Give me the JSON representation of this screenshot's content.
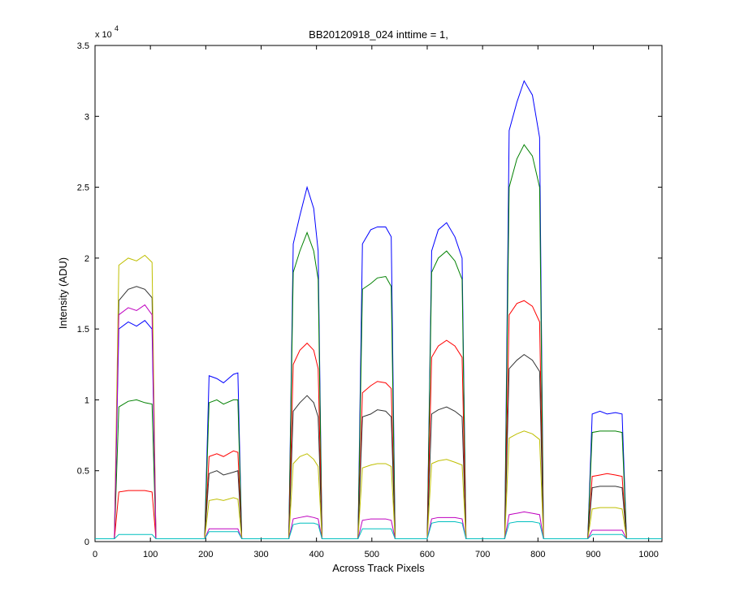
{
  "chart_data": {
    "type": "line",
    "title": "BB20120918_024 inttime = 1,",
    "x_label": "Across Track Pixels",
    "y_label": "Intensity (ADU)",
    "y_multiplier": {
      "base": "x 10",
      "exponent": "4"
    },
    "xlim": [
      0,
      1024
    ],
    "xticks": [
      0,
      100,
      200,
      300,
      400,
      500,
      600,
      700,
      800,
      900,
      1000
    ],
    "ylim": [
      0,
      3.5
    ],
    "yticks": [
      0,
      0.5,
      1,
      1.5,
      2,
      2.5,
      3,
      3.5
    ],
    "grid": false,
    "x": [
      0,
      35,
      43,
      60,
      75,
      90,
      103,
      110,
      198,
      206,
      220,
      232,
      250,
      258,
      265,
      350,
      358,
      370,
      383,
      395,
      403,
      410,
      475,
      483,
      498,
      510,
      525,
      535,
      542,
      600,
      608,
      620,
      635,
      650,
      663,
      670,
      740,
      748,
      762,
      775,
      790,
      803,
      810,
      890,
      898,
      912,
      925,
      940,
      952,
      960,
      1024
    ],
    "series": [
      {
        "color": "#0000ff",
        "values": [
          0.02,
          0.02,
          1.5,
          1.55,
          1.52,
          1.56,
          1.5,
          0.02,
          0.02,
          1.17,
          1.15,
          1.12,
          1.18,
          1.19,
          0.02,
          0.02,
          2.1,
          2.3,
          2.5,
          2.35,
          2.05,
          0.02,
          0.02,
          2.1,
          2.2,
          2.22,
          2.22,
          2.15,
          0.02,
          0.02,
          2.05,
          2.2,
          2.25,
          2.15,
          2.0,
          0.02,
          0.02,
          2.9,
          3.1,
          3.25,
          3.15,
          2.85,
          0.02,
          0.02,
          0.9,
          0.92,
          0.9,
          0.91,
          0.9,
          0.02,
          0.02
        ]
      },
      {
        "color": "#008000",
        "values": [
          0.02,
          0.02,
          0.95,
          0.99,
          1.0,
          0.98,
          0.97,
          0.02,
          0.02,
          0.98,
          1.0,
          0.97,
          1.0,
          1.0,
          0.02,
          0.02,
          1.9,
          2.05,
          2.18,
          2.05,
          1.85,
          0.02,
          0.02,
          1.78,
          1.82,
          1.86,
          1.87,
          1.8,
          0.02,
          0.02,
          1.9,
          2.0,
          2.05,
          1.98,
          1.85,
          0.02,
          0.02,
          2.5,
          2.7,
          2.8,
          2.72,
          2.5,
          0.02,
          0.02,
          0.77,
          0.78,
          0.78,
          0.78,
          0.77,
          0.02,
          0.02
        ]
      },
      {
        "color": "#ff0000",
        "values": [
          0.02,
          0.02,
          0.35,
          0.36,
          0.36,
          0.36,
          0.35,
          0.02,
          0.02,
          0.6,
          0.62,
          0.6,
          0.64,
          0.63,
          0.02,
          0.02,
          1.25,
          1.35,
          1.4,
          1.35,
          1.22,
          0.02,
          0.02,
          1.05,
          1.1,
          1.13,
          1.12,
          1.08,
          0.02,
          0.02,
          1.3,
          1.38,
          1.42,
          1.38,
          1.3,
          0.02,
          0.02,
          1.6,
          1.68,
          1.7,
          1.66,
          1.55,
          0.02,
          0.02,
          0.46,
          0.47,
          0.48,
          0.47,
          0.46,
          0.02,
          0.02
        ]
      },
      {
        "color": "#333333",
        "values": [
          0.02,
          0.02,
          1.7,
          1.78,
          1.8,
          1.78,
          1.72,
          0.02,
          0.02,
          0.48,
          0.5,
          0.47,
          0.49,
          0.5,
          0.02,
          0.02,
          0.92,
          0.98,
          1.03,
          0.98,
          0.88,
          0.02,
          0.02,
          0.88,
          0.9,
          0.93,
          0.92,
          0.88,
          0.02,
          0.02,
          0.9,
          0.93,
          0.95,
          0.92,
          0.88,
          0.02,
          0.02,
          1.22,
          1.28,
          1.32,
          1.28,
          1.2,
          0.02,
          0.02,
          0.38,
          0.39,
          0.39,
          0.39,
          0.38,
          0.02,
          0.02
        ]
      },
      {
        "color": "#bfbf00",
        "values": [
          0.02,
          0.02,
          1.95,
          2.0,
          1.98,
          2.02,
          1.97,
          0.02,
          0.02,
          0.29,
          0.3,
          0.29,
          0.31,
          0.3,
          0.02,
          0.02,
          0.55,
          0.6,
          0.62,
          0.58,
          0.53,
          0.02,
          0.02,
          0.52,
          0.54,
          0.55,
          0.55,
          0.53,
          0.02,
          0.02,
          0.55,
          0.57,
          0.58,
          0.56,
          0.54,
          0.02,
          0.02,
          0.73,
          0.76,
          0.78,
          0.76,
          0.72,
          0.02,
          0.02,
          0.23,
          0.24,
          0.24,
          0.24,
          0.23,
          0.02,
          0.02
        ]
      },
      {
        "color": "#bf00bf",
        "values": [
          0.02,
          0.02,
          1.6,
          1.65,
          1.63,
          1.67,
          1.6,
          0.02,
          0.02,
          0.09,
          0.09,
          0.09,
          0.09,
          0.09,
          0.02,
          0.02,
          0.16,
          0.17,
          0.18,
          0.17,
          0.16,
          0.02,
          0.02,
          0.15,
          0.16,
          0.16,
          0.16,
          0.15,
          0.02,
          0.02,
          0.16,
          0.17,
          0.17,
          0.17,
          0.16,
          0.02,
          0.02,
          0.19,
          0.2,
          0.21,
          0.2,
          0.19,
          0.02,
          0.02,
          0.08,
          0.08,
          0.08,
          0.08,
          0.08,
          0.02,
          0.02
        ]
      },
      {
        "color": "#00bfbf",
        "values": [
          0.02,
          0.02,
          0.05,
          0.05,
          0.05,
          0.05,
          0.05,
          0.02,
          0.02,
          0.07,
          0.07,
          0.07,
          0.07,
          0.07,
          0.02,
          0.02,
          0.12,
          0.13,
          0.13,
          0.13,
          0.12,
          0.02,
          0.02,
          0.09,
          0.09,
          0.09,
          0.09,
          0.09,
          0.02,
          0.02,
          0.13,
          0.14,
          0.14,
          0.14,
          0.13,
          0.02,
          0.02,
          0.13,
          0.14,
          0.14,
          0.14,
          0.13,
          0.02,
          0.02,
          0.05,
          0.05,
          0.05,
          0.05,
          0.05,
          0.02,
          0.02
        ]
      }
    ]
  }
}
